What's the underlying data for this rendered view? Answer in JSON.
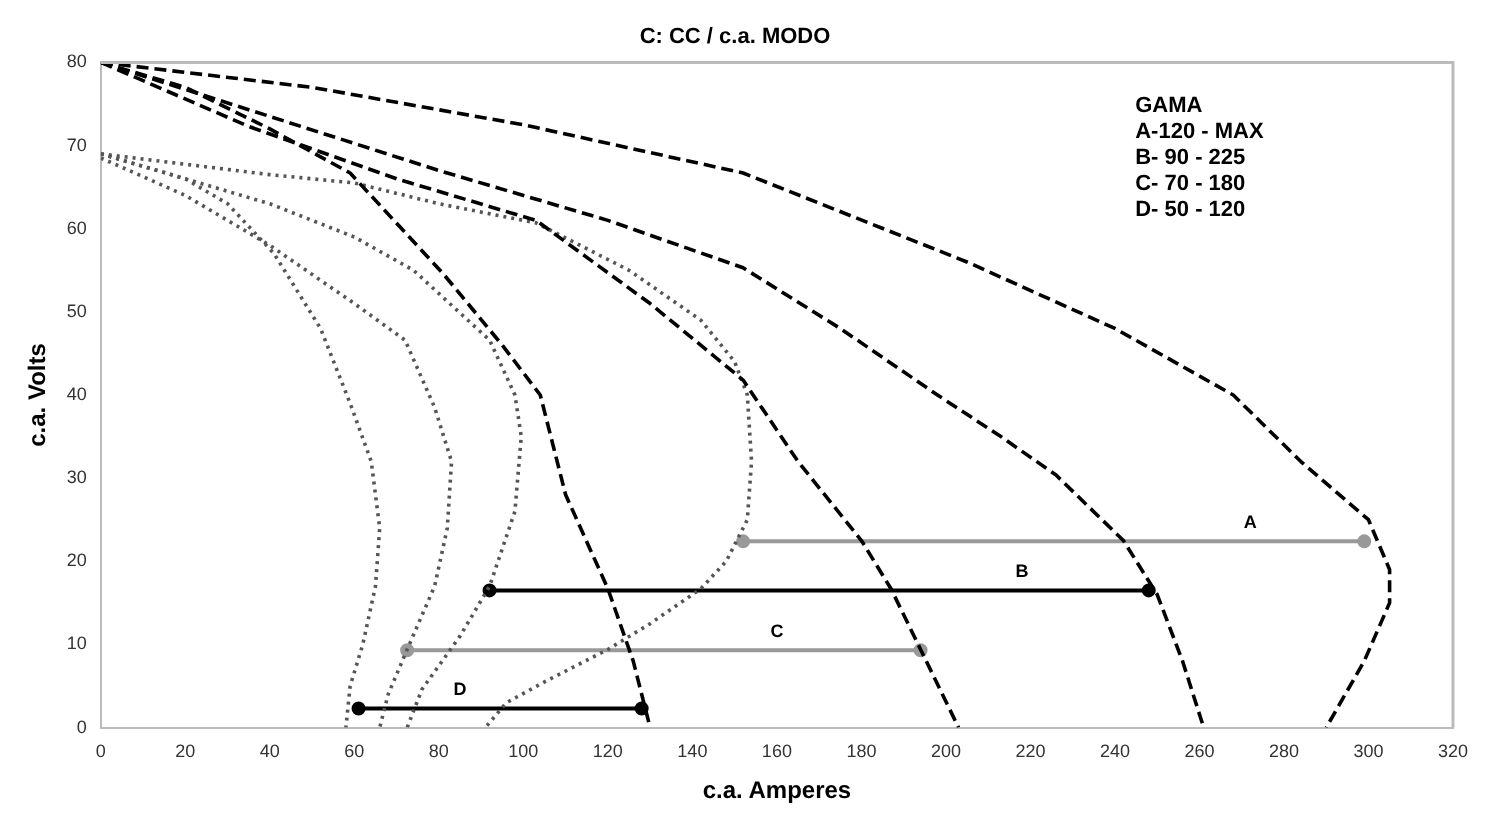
{
  "chart_data": {
    "type": "line",
    "title": "C: CC / c.a. MODO",
    "xlabel": "c.a. Amperes",
    "ylabel": "c.a. Volts",
    "xlim": [
      0,
      320
    ],
    "xticks": [
      0,
      20,
      40,
      60,
      80,
      100,
      120,
      140,
      160,
      180,
      200,
      220,
      240,
      260,
      280,
      300,
      320
    ],
    "ylim": [
      0,
      80
    ],
    "yticks": [
      0,
      10,
      20,
      30,
      40,
      50,
      60,
      70,
      80
    ],
    "grid": false,
    "legend": false,
    "marker": "none",
    "series": [
      {
        "color": "#000000",
        "line_style": "dashed",
        "x": [
          0,
          20,
          40,
          59,
          81,
          95,
          104,
          110,
          120,
          126,
          130
        ],
        "values": [
          80,
          77,
          72,
          66.7,
          54.6,
          46,
          40,
          28,
          16.7,
          8,
          0
        ]
      },
      {
        "color": "#000000",
        "line_style": "dashed",
        "x": [
          0,
          35,
          70,
          103,
          130,
          152,
          165,
          180,
          187,
          194,
          203
        ],
        "values": [
          80,
          72.3,
          66,
          61,
          51,
          41.8,
          32,
          22.5,
          16.7,
          9.4,
          0
        ]
      },
      {
        "color": "#000000",
        "line_style": "dashed",
        "x": [
          0,
          40,
          80,
          120,
          152,
          175,
          198,
          213,
          226,
          242,
          250,
          256,
          261
        ],
        "values": [
          80,
          73.5,
          67,
          61,
          55.3,
          48,
          40,
          35,
          30.4,
          22.5,
          16,
          8,
          0
        ]
      },
      {
        "color": "#000000",
        "line_style": "dashed",
        "x": [
          0,
          50,
          100,
          152,
          205,
          240,
          268,
          284,
          300,
          305,
          305,
          299,
          290
        ],
        "values": [
          80,
          77,
          72.5,
          66.7,
          56,
          48,
          40,
          32,
          25,
          19,
          15,
          8,
          0
        ]
      },
      {
        "color": "#555555",
        "line_style": "dotted",
        "x": [
          0,
          20,
          30,
          41,
          52,
          59,
          64,
          66,
          65,
          62,
          59,
          58
        ],
        "values": [
          69,
          66,
          63,
          57,
          48,
          39,
          32,
          24,
          17,
          10,
          5,
          0
        ]
      },
      {
        "color": "#555555",
        "line_style": "dotted",
        "x": [
          0,
          20,
          40,
          60,
          72,
          79,
          83,
          82,
          79,
          72.5,
          68,
          66
        ],
        "values": [
          68.5,
          64,
          58,
          51,
          46.6,
          38.5,
          32,
          24,
          17,
          9.4,
          4,
          0
        ]
      },
      {
        "color": "#555555",
        "line_style": "dotted",
        "x": [
          0,
          20,
          40,
          60,
          74,
          92,
          98,
          99.5,
          98,
          92,
          85,
          76,
          72.5
        ],
        "values": [
          69,
          66,
          63,
          59,
          55,
          46.6,
          40,
          35,
          26,
          17,
          11,
          4.6,
          0
        ]
      },
      {
        "color": "#555555",
        "line_style": "dotted",
        "x": [
          0,
          40,
          60,
          80,
          103,
          125,
          142,
          150,
          153,
          154,
          153,
          148,
          142,
          130,
          120,
          105,
          96,
          91
        ],
        "values": [
          69,
          66.5,
          65.5,
          63,
          60.7,
          55,
          49,
          44,
          40,
          32,
          25,
          20,
          16.7,
          12.5,
          9.4,
          5.5,
          3,
          0
        ]
      },
      {
        "color": "#999999",
        "line_style": "solid",
        "marker": "circle",
        "x": [
          152,
          299
        ],
        "values": [
          22.4,
          22.4
        ]
      },
      {
        "color": "#000000",
        "line_style": "solid",
        "marker": "circle",
        "x": [
          92,
          248
        ],
        "values": [
          16.5,
          16.5
        ]
      },
      {
        "color": "#999999",
        "line_style": "solid",
        "marker": "circle",
        "x": [
          72.5,
          194
        ],
        "values": [
          9.3,
          9.3
        ]
      },
      {
        "color": "#000000",
        "line_style": "solid",
        "marker": "circle",
        "x": [
          61,
          128
        ],
        "values": [
          2.3,
          2.3
        ]
      }
    ],
    "annotations": [
      "GAMA",
      "A-120 - MAX",
      "B- 90 - 225",
      "C- 70 - 180",
      "D- 50 - 120",
      {
        "text": "A",
        "x": 272,
        "y": 22.4
      },
      {
        "text": "B",
        "x": 218,
        "y": 16.5
      },
      {
        "text": "C",
        "x": 160,
        "y": 9.3
      },
      {
        "text": "D",
        "x": 85,
        "y": 2.3
      }
    ]
  }
}
